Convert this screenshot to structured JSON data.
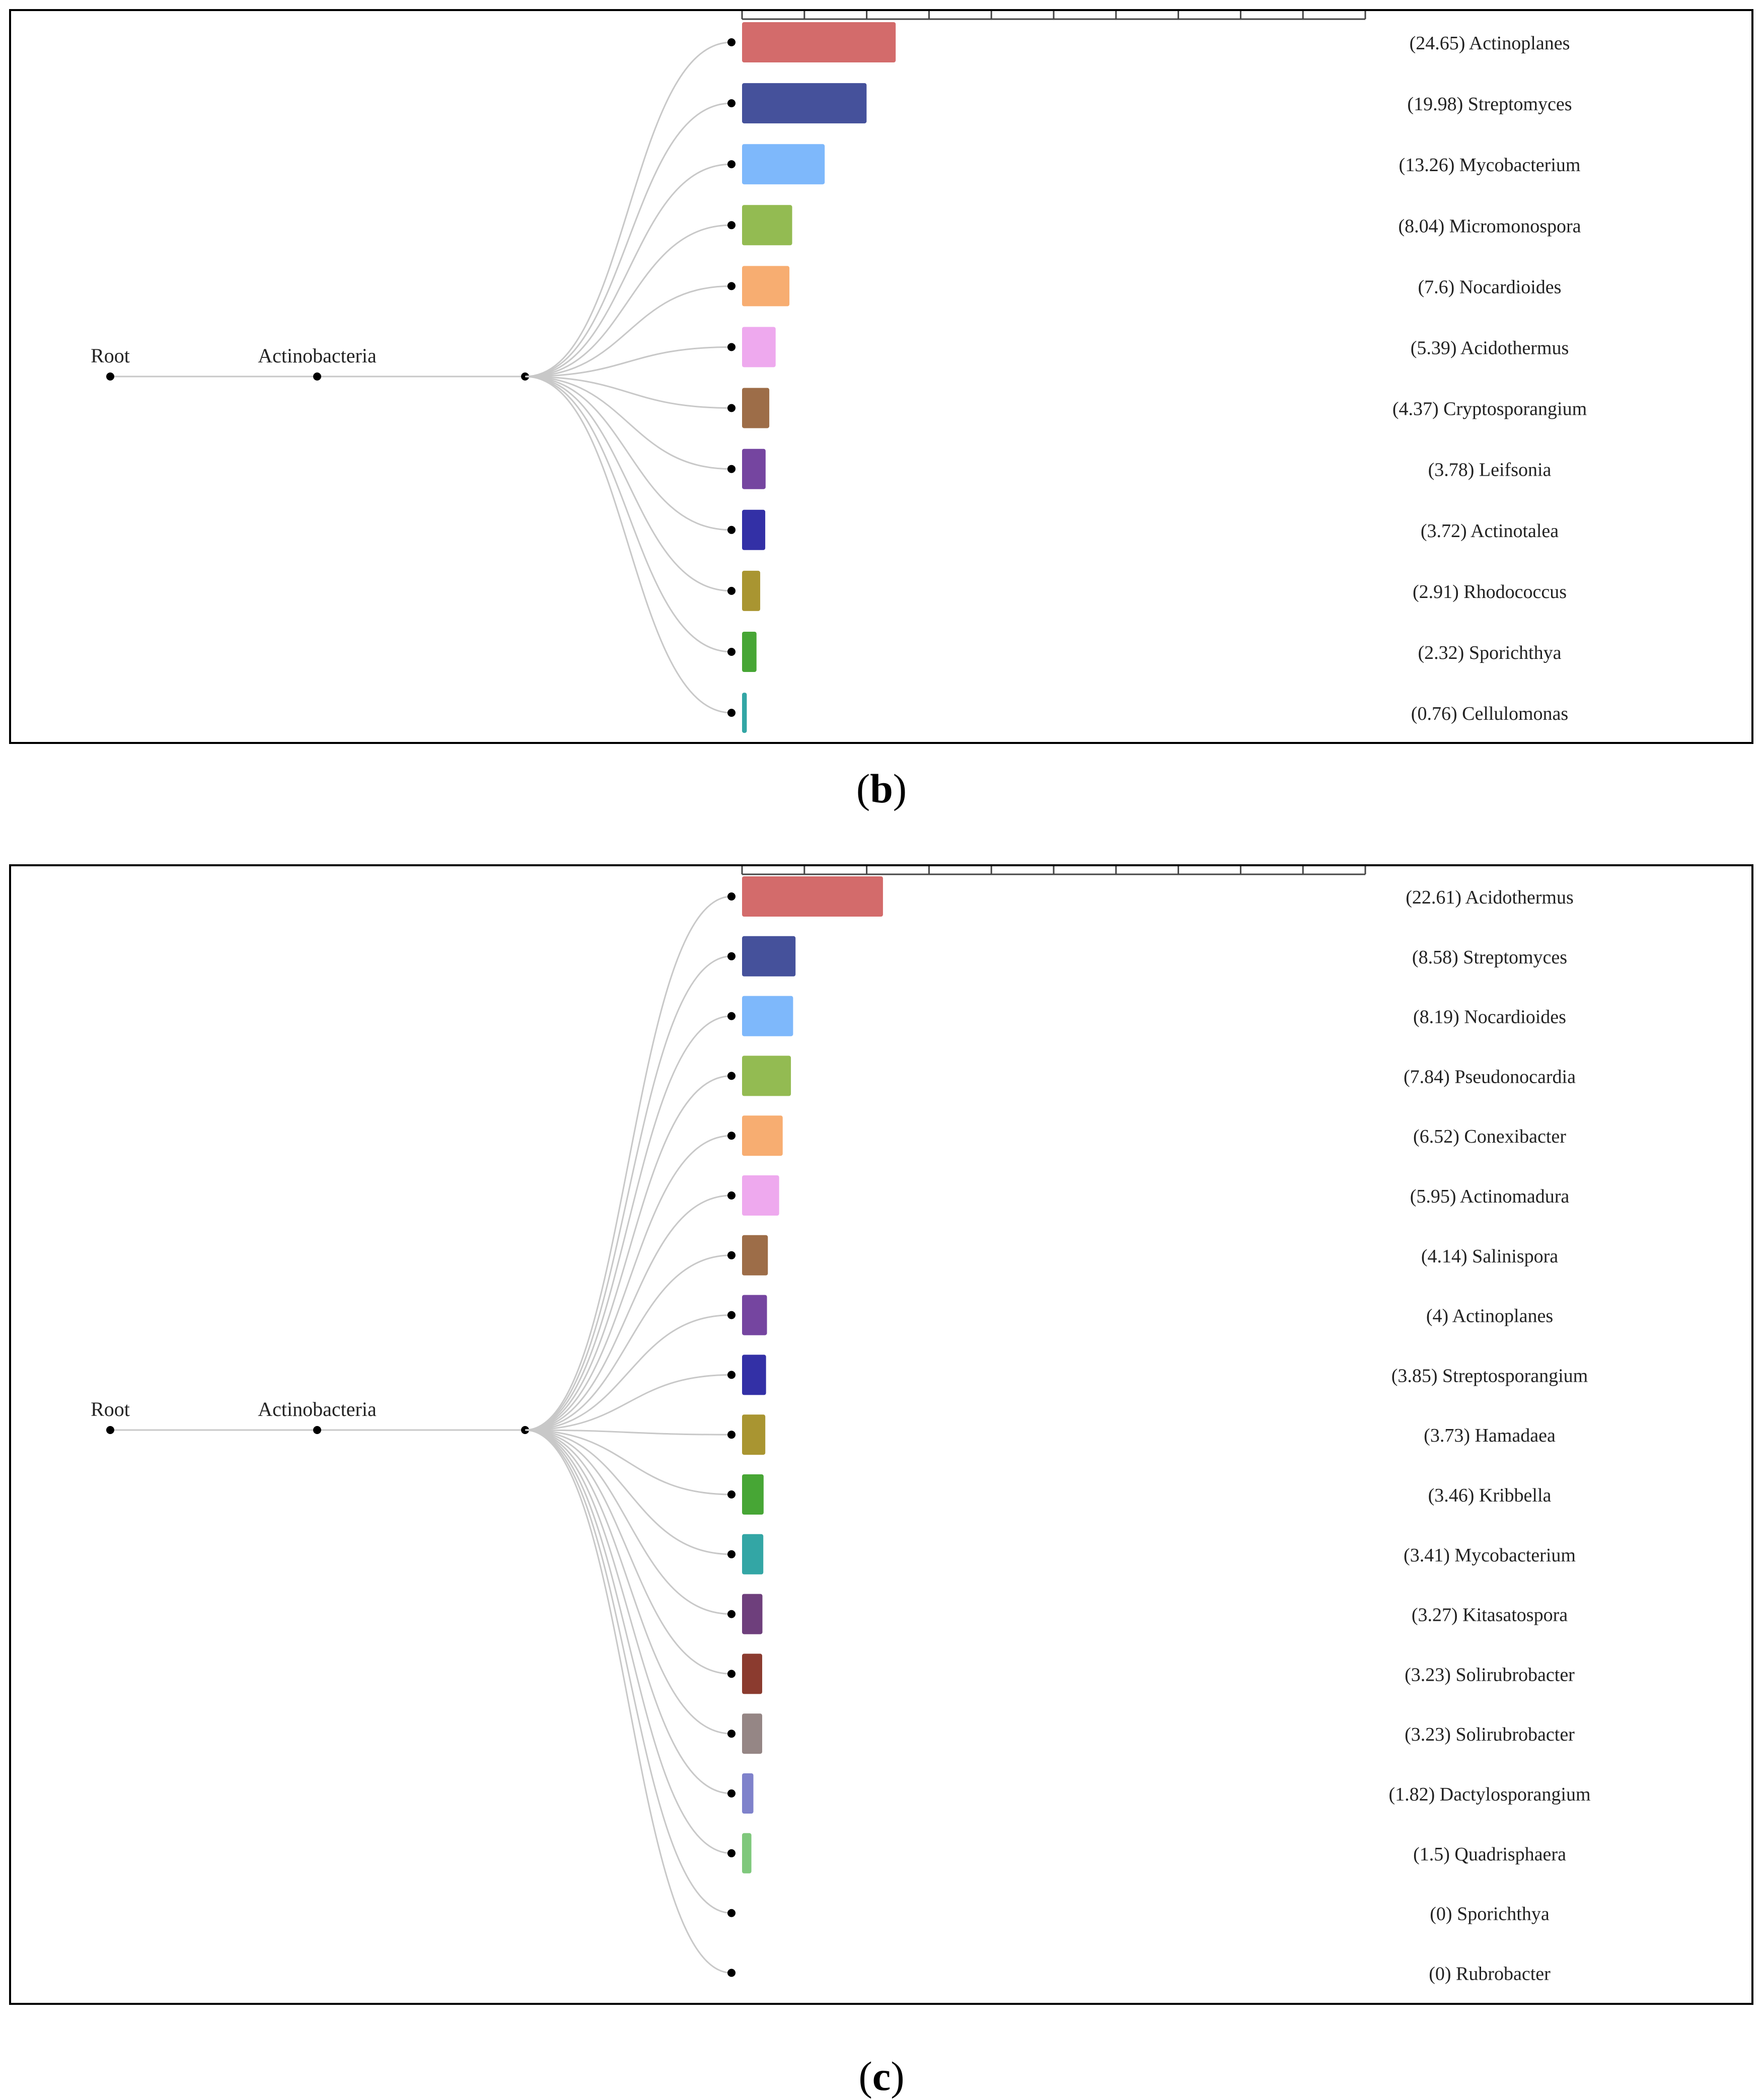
{
  "chart_data": [
    {
      "type": "bar",
      "panel": "b",
      "caption": "b",
      "tree": [
        "Root",
        "Actinobacteria"
      ],
      "categories": [
        "Actinoplanes",
        "Streptomyces",
        "Mycobacterium",
        "Micromonospora",
        "Nocardioides",
        "Acidothermus",
        "Cryptosporangium",
        "Leifsonia",
        "Actinotalea",
        "Rhodococcus",
        "Sporichthya",
        "Cellulomonas"
      ],
      "values": [
        24.65,
        19.98,
        13.26,
        8.04,
        7.6,
        5.39,
        4.37,
        3.78,
        3.72,
        2.91,
        2.32,
        0.76
      ],
      "labels": [
        "(24.65) Actinoplanes",
        "(19.98) Streptomyces",
        "(13.26) Mycobacterium",
        "(8.04) Micromonospora",
        "(7.6) Nocardioides",
        "(5.39) Acidothermus",
        "(4.37) Cryptosporangium",
        "(3.78) Leifsonia",
        "(3.72) Actinotalea",
        "(2.91) Rhodococcus",
        "(2.32) Sporichthya",
        "(0.76) Cellulomonas"
      ],
      "colors": [
        "#d36b6b",
        "#45519b",
        "#7eb8fb",
        "#93bb52",
        "#f7ad71",
        "#eea9ee",
        "#9d6d48",
        "#7545a0",
        "#3330a6",
        "#a99531",
        "#47a635",
        "#33a6a5"
      ],
      "xlim": [
        0,
        100
      ],
      "tick_step": 10,
      "xlabel": "",
      "ylabel": "",
      "title": ""
    },
    {
      "type": "bar",
      "panel": "c",
      "caption": "c",
      "tree": [
        "Root",
        "Actinobacteria"
      ],
      "categories": [
        "Acidothermus",
        "Streptomyces",
        "Nocardioides",
        "Pseudonocardia",
        "Conexibacter",
        "Actinomadura",
        "Salinispora",
        "Actinoplanes",
        "Streptosporangium",
        "Hamadaea",
        "Kribbella",
        "Mycobacterium",
        "Kitasatospora",
        "Solirubrobacter",
        "Solirubrobacter",
        "Dactylosporangium",
        "Quadrisphaera",
        "Sporichthya",
        "Rubrobacter"
      ],
      "values": [
        22.61,
        8.58,
        8.19,
        7.84,
        6.52,
        5.95,
        4.14,
        4,
        3.85,
        3.73,
        3.46,
        3.41,
        3.27,
        3.23,
        3.23,
        1.82,
        1.5,
        0,
        0
      ],
      "labels": [
        "(22.61) Acidothermus",
        "(8.58) Streptomyces",
        "(8.19) Nocardioides",
        "(7.84) Pseudonocardia",
        "(6.52) Conexibacter",
        "(5.95) Actinomadura",
        "(4.14) Salinispora",
        "(4) Actinoplanes",
        "(3.85) Streptosporangium",
        "(3.73) Hamadaea",
        "(3.46) Kribbella",
        "(3.41) Mycobacterium",
        "(3.27) Kitasatospora",
        "(3.23) Solirubrobacter",
        "(3.23) Solirubrobacter",
        "(1.82) Dactylosporangium",
        "(1.5) Quadrisphaera",
        "(0) Sporichthya",
        "(0) Rubrobacter"
      ],
      "colors": [
        "#d36b6b",
        "#45519b",
        "#7eb8fb",
        "#93bb52",
        "#f7ad71",
        "#eea9ee",
        "#9d6d48",
        "#7545a0",
        "#3330a6",
        "#a99531",
        "#47a635",
        "#33a6a5",
        "#6e3f7c",
        "#8b3b2f",
        "#958685",
        "#7f82cb",
        "#7fc87c",
        "#cccccc",
        "#cccccc"
      ],
      "xlim": [
        0,
        100
      ],
      "tick_step": 10,
      "xlabel": "",
      "ylabel": "",
      "title": ""
    }
  ]
}
